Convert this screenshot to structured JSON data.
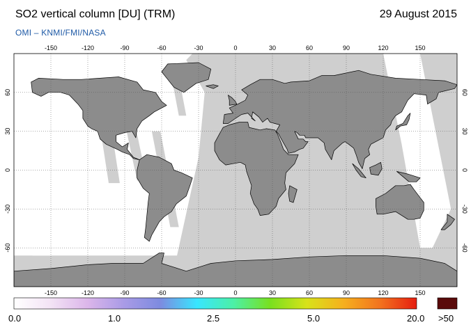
{
  "header": {
    "title": "SO2 vertical column [DU] (TRM)",
    "date": "29 August 2015",
    "source": "OMI  –  KNMI/FMI/NASA"
  },
  "map": {
    "projection": "equirectangular",
    "lon_range": [
      -180,
      180
    ],
    "lat_range": [
      -90,
      90
    ],
    "lon_ticks": [
      -150,
      -120,
      -90,
      -60,
      -30,
      0,
      30,
      60,
      90,
      120,
      150
    ],
    "lat_ticks": [
      60,
      30,
      0,
      -30,
      -60
    ],
    "grid": "dotted",
    "colors": {
      "land": "#8c8c8c",
      "no_data": "#cfcfcf",
      "background": "#ffffff",
      "coastline": "#000000"
    }
  },
  "colorbar": {
    "labels": [
      "0.0",
      "1.0",
      "2.5",
      "5.0",
      "20.0"
    ],
    "overflow_label": ">50",
    "overflow_color": "#5a0a0a",
    "stops": [
      "#ffffff",
      "#f3e3f5",
      "#dcb6ea",
      "#a99be6",
      "#7d8be0",
      "#38e6ff",
      "#4cf0a6",
      "#79e01f",
      "#d8e21a",
      "#f6b01e",
      "#f2731f",
      "#e61e10"
    ]
  }
}
